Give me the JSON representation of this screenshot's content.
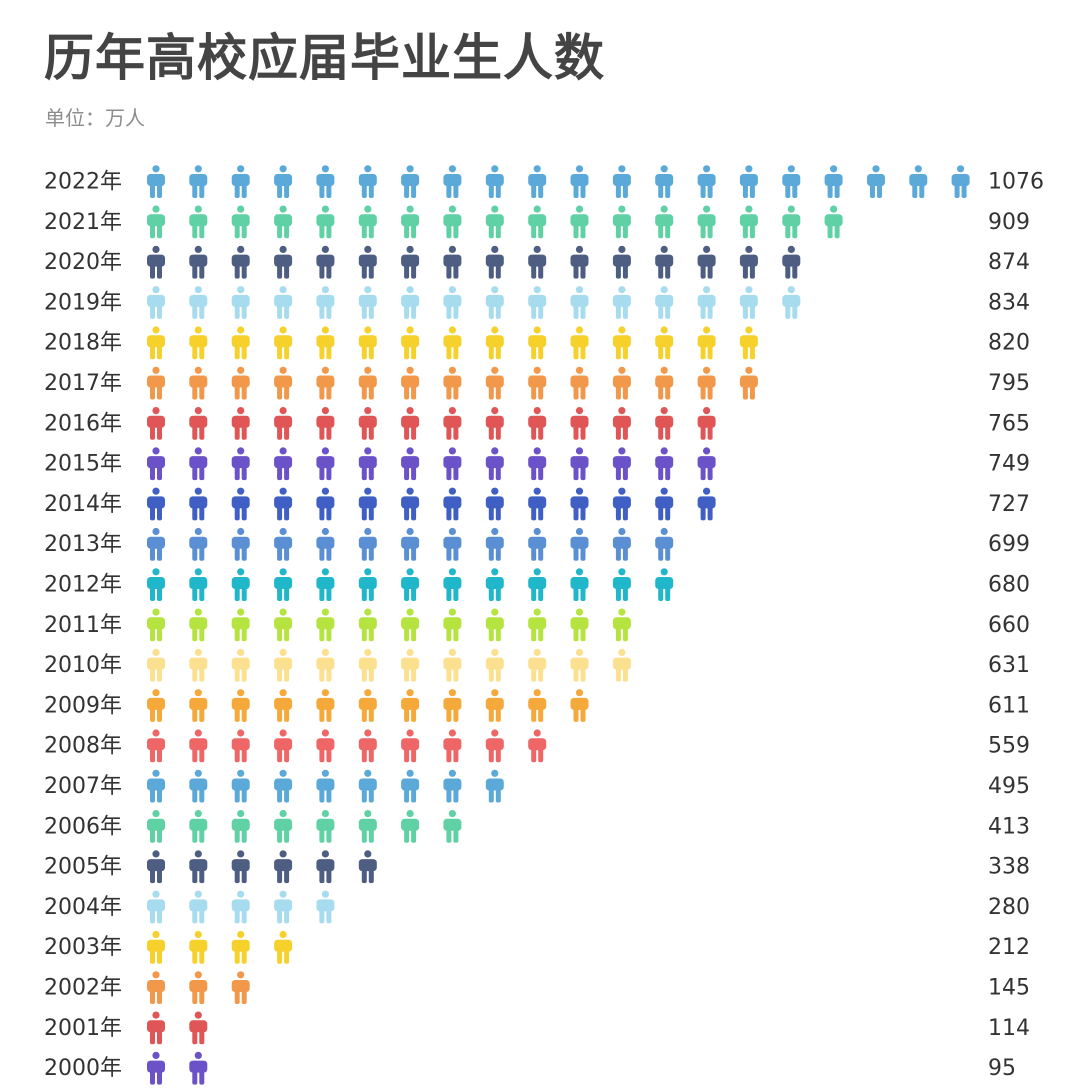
{
  "title": "历年高校应届毕业生人数",
  "unit": "单位：万人",
  "chart_data": {
    "type": "pictogram",
    "title": "历年高校应届毕业生人数",
    "unit": "单位：万人",
    "icon": "person-icon",
    "icon_scale": "each icon approximately 50 万人 (rounded)",
    "categories": [
      "2022年",
      "2021年",
      "2020年",
      "2019年",
      "2018年",
      "2017年",
      "2016年",
      "2015年",
      "2014年",
      "2013年",
      "2012年",
      "2011年",
      "2010年",
      "2009年",
      "2008年",
      "2007年",
      "2006年",
      "2005年",
      "2004年",
      "2003年",
      "2002年",
      "2001年",
      "2000年"
    ],
    "values": [
      1076,
      909,
      874,
      834,
      820,
      795,
      765,
      749,
      727,
      699,
      680,
      660,
      631,
      611,
      559,
      495,
      413,
      338,
      280,
      212,
      145,
      114,
      95
    ],
    "value_labels": [
      "1076",
      "909",
      "874",
      "834",
      "820",
      "795",
      "765",
      "749",
      "727",
      "699",
      "680",
      "660",
      "631",
      "611",
      "559",
      "495",
      "413",
      "338",
      "280",
      "212",
      "145",
      "114",
      "95"
    ],
    "icon_counts": [
      20,
      17,
      16,
      16,
      15,
      15,
      14,
      14,
      14,
      13,
      13,
      12,
      12,
      11,
      10,
      9,
      8,
      6,
      5,
      4,
      3,
      2,
      2
    ],
    "colors": [
      "#5aa9d8",
      "#5fd1a4",
      "#4e5d82",
      "#a7dcee",
      "#f6d12c",
      "#f2984a",
      "#e05555",
      "#6b52c9",
      "#3f5fc4",
      "#5b8fd3",
      "#1fb7c9",
      "#b5e33f",
      "#fbe08f",
      "#f5a93b",
      "#ee6666",
      "#5aa9d8",
      "#5fd1a4",
      "#4e5d82",
      "#a7dcee",
      "#f6d12c",
      "#f2984a",
      "#e05555",
      "#6b52c9"
    ]
  }
}
